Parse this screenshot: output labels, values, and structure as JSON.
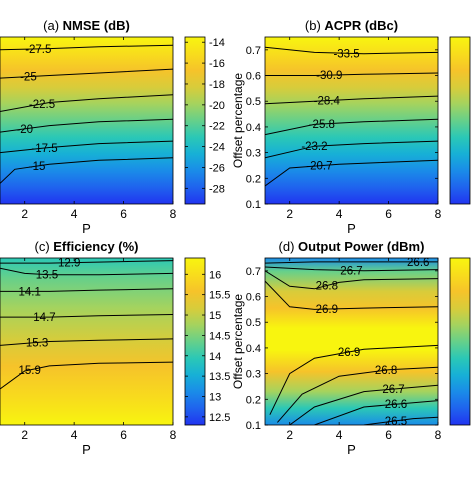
{
  "colormap": [
    "#2134f0",
    "#1f63ee",
    "#1a8ce8",
    "#17b0d6",
    "#2bc8b6",
    "#66d08a",
    "#a5d35e",
    "#d8cc3a",
    "#f6c32a",
    "#f8dd1c",
    "#f8f50f"
  ],
  "chart_data": [
    {
      "type": "heatmap",
      "title": "(a) NMSE (dB)",
      "title_parts": {
        "prefix": "(a) ",
        "bold": "NMSE (dB)"
      },
      "xlabel": "P",
      "ylabel": "",
      "xlim": [
        1,
        8
      ],
      "ylim": [
        0.1,
        0.75
      ],
      "xticks": [
        2,
        4,
        6,
        8
      ],
      "yticks": [],
      "clim": [
        -29.5,
        -13.5
      ],
      "colorbar_ticks": [
        -14,
        -16,
        -18,
        -20,
        -22,
        -24,
        -26,
        -28
      ],
      "contours": [
        {
          "label": "-27.5",
          "points": [
            [
              1,
              0.7
            ],
            [
              3,
              0.705
            ],
            [
              5,
              0.712
            ],
            [
              8,
              0.718
            ]
          ],
          "label_at": 2.55
        },
        {
          "label": "-25",
          "points": [
            [
              1,
              0.59
            ],
            [
              3,
              0.6
            ],
            [
              5,
              0.61
            ],
            [
              8,
              0.625
            ]
          ],
          "label_at": 2.15
        },
        {
          "label": "-22.5",
          "points": [
            [
              1,
              0.46
            ],
            [
              3,
              0.495
            ],
            [
              5,
              0.51
            ],
            [
              8,
              0.525
            ]
          ],
          "label_at": 2.7
        },
        {
          "label": "-20",
          "points": [
            [
              1,
              0.38
            ],
            [
              3,
              0.405
            ],
            [
              5,
              0.42
            ],
            [
              8,
              0.43
            ]
          ],
          "label_at": 2.0
        },
        {
          "label": "-17.5",
          "points": [
            [
              1,
              0.3
            ],
            [
              3,
              0.32
            ],
            [
              5,
              0.335
            ],
            [
              8,
              0.345
            ]
          ],
          "label_at": 2.8
        },
        {
          "label": "-15",
          "points": [
            [
              1,
              0.18
            ],
            [
              1.6,
              0.235
            ],
            [
              3,
              0.255
            ],
            [
              5,
              0.27
            ],
            [
              8,
              0.28
            ]
          ],
          "label_at": 2.5
        }
      ]
    },
    {
      "type": "heatmap",
      "title": "(b) ACPR (dBc)",
      "title_parts": {
        "prefix": "(b) ",
        "bold": "ACPR (dBc)"
      },
      "xlabel": "P",
      "ylabel": "Offset percentage",
      "xlim": [
        1,
        8
      ],
      "ylim": [
        0.1,
        0.75
      ],
      "xticks": [
        2,
        4,
        6,
        8
      ],
      "yticks": [
        0.1,
        0.2,
        0.3,
        0.4,
        0.5,
        0.6,
        0.7
      ],
      "clim": [
        -36,
        -18
      ],
      "colorbar_ticks": [],
      "contours": [
        {
          "label": "-33.5",
          "points": [
            [
              1,
              0.71
            ],
            [
              3,
              0.69
            ],
            [
              5,
              0.685
            ],
            [
              8,
              0.69
            ]
          ],
          "label_at": 4.3
        },
        {
          "label": "-30.9",
          "points": [
            [
              1,
              0.6
            ],
            [
              3,
              0.6
            ],
            [
              5,
              0.605
            ],
            [
              8,
              0.61
            ]
          ],
          "label_at": 3.6
        },
        {
          "label": "-28.4",
          "points": [
            [
              1,
              0.49
            ],
            [
              3,
              0.5
            ],
            [
              5,
              0.51
            ],
            [
              8,
              0.52
            ]
          ],
          "label_at": 3.5
        },
        {
          "label": "-25.8",
          "points": [
            [
              1,
              0.37
            ],
            [
              3,
              0.41
            ],
            [
              5,
              0.42
            ],
            [
              8,
              0.43
            ]
          ],
          "label_at": 3.3
        },
        {
          "label": "-23.2",
          "points": [
            [
              1,
              0.28
            ],
            [
              3,
              0.325
            ],
            [
              5,
              0.335
            ],
            [
              8,
              0.345
            ]
          ],
          "label_at": 3.0
        },
        {
          "label": "-20.7",
          "points": [
            [
              1,
              0.17
            ],
            [
              2,
              0.24
            ],
            [
              4,
              0.255
            ],
            [
              8,
              0.27
            ]
          ],
          "label_at": 3.2
        }
      ]
    },
    {
      "type": "heatmap",
      "title": "(c) Efficiency (%)",
      "title_parts": {
        "prefix": "(c) ",
        "bold": "Efficiency (%)"
      },
      "xlabel": "P",
      "ylabel": "",
      "xlim": [
        1,
        8
      ],
      "ylim": [
        0.1,
        0.75
      ],
      "xticks": [
        2,
        4,
        6,
        8
      ],
      "yticks": [],
      "clim": [
        12.3,
        16.4
      ],
      "colorbar_ticks": [
        16,
        15.5,
        15,
        14.5,
        14,
        13.5,
        13,
        12.5
      ],
      "contours": [
        {
          "label": "12.9",
          "points": [
            [
              1,
              0.73
            ],
            [
              2,
              0.73
            ],
            [
              3,
              0.73
            ],
            [
              8,
              0.74
            ]
          ],
          "label_at": 3.8
        },
        {
          "label": "13.5",
          "points": [
            [
              1,
              0.71
            ],
            [
              2,
              0.69
            ],
            [
              3,
              0.685
            ],
            [
              5,
              0.685
            ],
            [
              8,
              0.69
            ]
          ],
          "label_at": 2.9
        },
        {
          "label": "14.1",
          "points": [
            [
              1,
              0.62
            ],
            [
              3,
              0.62
            ],
            [
              5,
              0.625
            ],
            [
              8,
              0.63
            ]
          ],
          "label_at": 2.2
        },
        {
          "label": "14.7",
          "points": [
            [
              1,
              0.52
            ],
            [
              3,
              0.52
            ],
            [
              5,
              0.525
            ],
            [
              8,
              0.53
            ]
          ],
          "label_at": 2.8
        },
        {
          "label": "15.3",
          "points": [
            [
              1,
              0.41
            ],
            [
              3,
              0.425
            ],
            [
              5,
              0.43
            ],
            [
              8,
              0.435
            ]
          ],
          "label_at": 2.5
        },
        {
          "label": "15.9",
          "points": [
            [
              1,
              0.24
            ],
            [
              2,
              0.31
            ],
            [
              3,
              0.33
            ],
            [
              5,
              0.34
            ],
            [
              8,
              0.345
            ]
          ],
          "label_at": 2.2
        }
      ]
    },
    {
      "type": "heatmap",
      "title": "(d) Output Power (dBm)",
      "title_parts": {
        "prefix": "(d) ",
        "bold": "Output Power (dBm)"
      },
      "xlabel": "P",
      "ylabel": "Offset percentage",
      "xlim": [
        1,
        8
      ],
      "ylim": [
        0.1,
        0.75
      ],
      "xticks": [
        2,
        4,
        6,
        8
      ],
      "yticks": [
        0.1,
        0.2,
        0.3,
        0.4,
        0.5,
        0.6,
        0.7
      ],
      "clim": [
        26.4,
        27.0
      ],
      "colorbar_ticks": [],
      "contours": [
        {
          "label": "26.6",
          "points": [
            [
              1,
              0.73
            ],
            [
              3,
              0.735
            ],
            [
              5,
              0.735
            ],
            [
              8,
              0.735
            ]
          ],
          "label_at": 7.2
        },
        {
          "label": "26.7",
          "points": [
            [
              1,
              0.715
            ],
            [
              3,
              0.705
            ],
            [
              5,
              0.7
            ],
            [
              8,
              0.705
            ]
          ],
          "label_at": 4.5
        },
        {
          "label": "26.8",
          "points": [
            [
              1,
              0.7
            ],
            [
              2,
              0.64
            ],
            [
              3,
              0.63
            ],
            [
              4,
              0.655
            ],
            [
              5,
              0.665
            ],
            [
              8,
              0.67
            ]
          ],
          "label_at": 3.5
        },
        {
          "label": "26.9",
          "points": [
            [
              1,
              0.66
            ],
            [
              2,
              0.56
            ],
            [
              3,
              0.55
            ],
            [
              5,
              0.555
            ],
            [
              8,
              0.56
            ]
          ],
          "label_at": 3.5
        },
        {
          "label": "26.9",
          "points": [
            [
              1.2,
              0.14
            ],
            [
              2,
              0.3
            ],
            [
              3,
              0.36
            ],
            [
              5,
              0.395
            ],
            [
              8,
              0.41
            ]
          ],
          "label_at": 4.4
        },
        {
          "label": "26.8",
          "points": [
            [
              1.5,
              0.11
            ],
            [
              2.5,
              0.22
            ],
            [
              4,
              0.29
            ],
            [
              6,
              0.315
            ],
            [
              8,
              0.325
            ]
          ],
          "label_at": 5.9
        },
        {
          "label": "26.7",
          "points": [
            [
              2,
              0.1
            ],
            [
              3,
              0.17
            ],
            [
              5,
              0.23
            ],
            [
              8,
              0.255
            ]
          ],
          "label_at": 6.2
        },
        {
          "label": "26.6",
          "points": [
            [
              3,
              0.1
            ],
            [
              5,
              0.17
            ],
            [
              8,
              0.195
            ]
          ],
          "label_at": 6.3
        },
        {
          "label": "26.5",
          "points": [
            [
              5,
              0.1
            ],
            [
              7,
              0.125
            ],
            [
              8,
              0.13
            ]
          ],
          "label_at": 6.3
        }
      ]
    }
  ]
}
